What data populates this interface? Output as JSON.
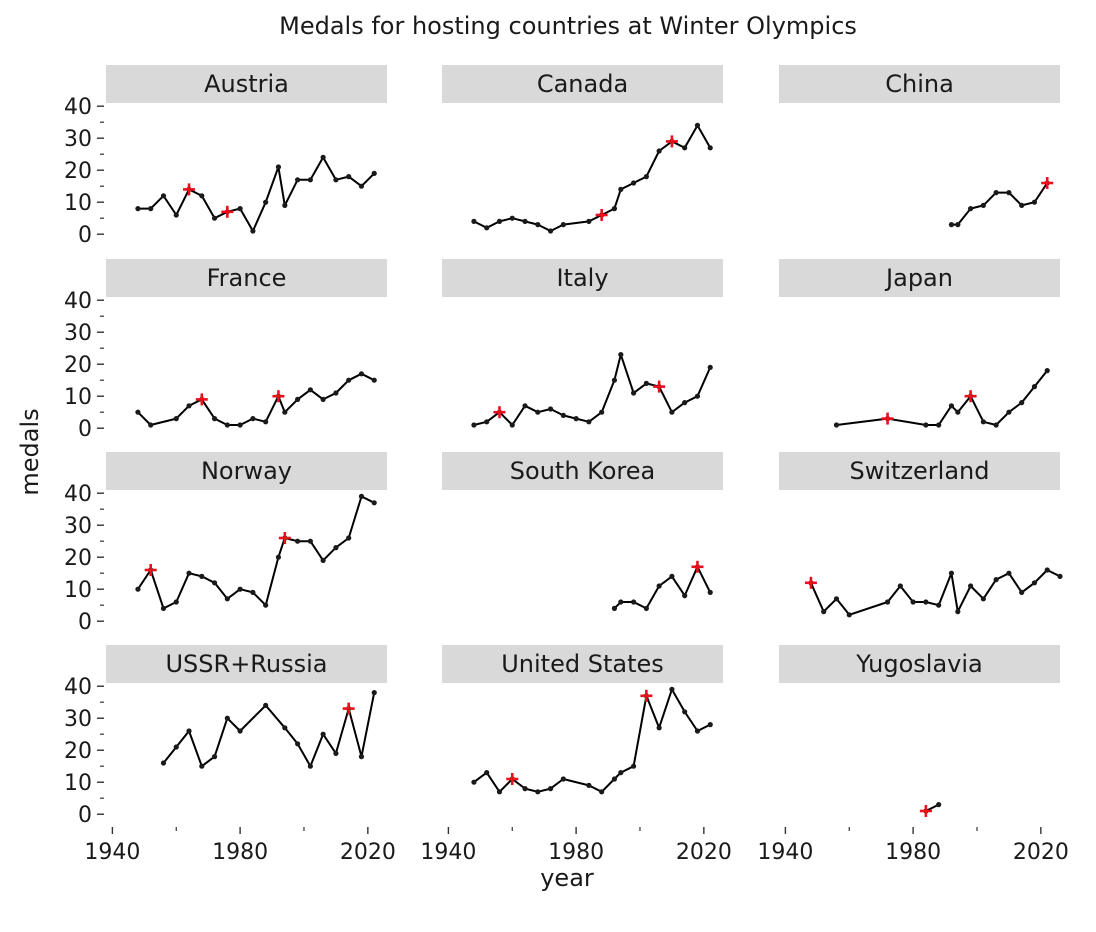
{
  "chart_data": {
    "type": "line",
    "title": "Medals for hosting countries at Winter Olympics",
    "xlabel": "year",
    "ylabel": "medals",
    "xlim": [
      1938,
      2026
    ],
    "ylim": [
      -1.5,
      41
    ],
    "x_ticks": [
      1940,
      1980,
      2020
    ],
    "x_tick_labels": [
      "1940",
      "1980",
      "2020"
    ],
    "y_ticks": [
      0,
      10,
      20,
      30,
      40
    ],
    "y_tick_labels": [
      "0",
      "10",
      "20",
      "30",
      "40"
    ],
    "grid": false,
    "line_color": "#000000",
    "host_marker_color": "#e8111b",
    "strip_color": "#d9d9d9",
    "facets": [
      {
        "name": "Austria",
        "points": [
          [
            1948,
            8
          ],
          [
            1952,
            8
          ],
          [
            1956,
            12
          ],
          [
            1960,
            6
          ],
          [
            1964,
            14
          ],
          [
            1968,
            12
          ],
          [
            1972,
            5
          ],
          [
            1976,
            7
          ],
          [
            1980,
            8
          ],
          [
            1984,
            1
          ],
          [
            1988,
            10
          ],
          [
            1992,
            21
          ],
          [
            1994,
            9
          ],
          [
            1998,
            17
          ],
          [
            2002,
            17
          ],
          [
            2006,
            24
          ],
          [
            2010,
            17
          ],
          [
            2014,
            18
          ],
          [
            2018,
            15
          ],
          [
            2022,
            19
          ]
        ],
        "host_years": [
          1964,
          1976
        ]
      },
      {
        "name": "Canada",
        "points": [
          [
            1948,
            4
          ],
          [
            1952,
            2
          ],
          [
            1956,
            4
          ],
          [
            1960,
            5
          ],
          [
            1964,
            4
          ],
          [
            1968,
            3
          ],
          [
            1972,
            1
          ],
          [
            1976,
            3
          ],
          [
            1984,
            4
          ],
          [
            1988,
            6
          ],
          [
            1992,
            8
          ],
          [
            1994,
            14
          ],
          [
            1998,
            16
          ],
          [
            2002,
            18
          ],
          [
            2006,
            26
          ],
          [
            2010,
            29
          ],
          [
            2014,
            27
          ],
          [
            2018,
            34
          ],
          [
            2022,
            27
          ]
        ],
        "host_years": [
          1988,
          2010
        ]
      },
      {
        "name": "China",
        "points": [
          [
            1992,
            3
          ],
          [
            1994,
            3
          ],
          [
            1998,
            8
          ],
          [
            2002,
            9
          ],
          [
            2006,
            13
          ],
          [
            2010,
            13
          ],
          [
            2014,
            9
          ],
          [
            2018,
            10
          ],
          [
            2022,
            16
          ]
        ],
        "host_years": [
          2022
        ]
      },
      {
        "name": "France",
        "points": [
          [
            1948,
            5
          ],
          [
            1952,
            1
          ],
          [
            1960,
            3
          ],
          [
            1964,
            7
          ],
          [
            1968,
            9
          ],
          [
            1972,
            3
          ],
          [
            1976,
            1
          ],
          [
            1980,
            1
          ],
          [
            1984,
            3
          ],
          [
            1988,
            2
          ],
          [
            1992,
            10
          ],
          [
            1994,
            5
          ],
          [
            1998,
            9
          ],
          [
            2002,
            12
          ],
          [
            2006,
            9
          ],
          [
            2010,
            11
          ],
          [
            2014,
            15
          ],
          [
            2018,
            17
          ],
          [
            2022,
            15
          ]
        ],
        "host_years": [
          1968,
          1992
        ]
      },
      {
        "name": "Italy",
        "points": [
          [
            1948,
            1
          ],
          [
            1952,
            2
          ],
          [
            1956,
            5
          ],
          [
            1960,
            1
          ],
          [
            1964,
            7
          ],
          [
            1968,
            5
          ],
          [
            1972,
            6
          ],
          [
            1976,
            4
          ],
          [
            1980,
            3
          ],
          [
            1984,
            2
          ],
          [
            1988,
            5
          ],
          [
            1992,
            15
          ],
          [
            1994,
            23
          ],
          [
            1998,
            11
          ],
          [
            2002,
            14
          ],
          [
            2006,
            13
          ],
          [
            2010,
            5
          ],
          [
            2014,
            8
          ],
          [
            2018,
            10
          ],
          [
            2022,
            19
          ]
        ],
        "host_years": [
          1956,
          2006
        ]
      },
      {
        "name": "Japan",
        "points": [
          [
            1956,
            1
          ],
          [
            1972,
            3
          ],
          [
            1984,
            1
          ],
          [
            1988,
            1
          ],
          [
            1992,
            7
          ],
          [
            1994,
            5
          ],
          [
            1998,
            10
          ],
          [
            2002,
            2
          ],
          [
            2006,
            1
          ],
          [
            2010,
            5
          ],
          [
            2014,
            8
          ],
          [
            2018,
            13
          ],
          [
            2022,
            18
          ]
        ],
        "host_years": [
          1972,
          1998
        ]
      },
      {
        "name": "Norway",
        "points": [
          [
            1948,
            10
          ],
          [
            1952,
            16
          ],
          [
            1956,
            4
          ],
          [
            1960,
            6
          ],
          [
            1964,
            15
          ],
          [
            1968,
            14
          ],
          [
            1972,
            12
          ],
          [
            1976,
            7
          ],
          [
            1980,
            10
          ],
          [
            1984,
            9
          ],
          [
            1988,
            5
          ],
          [
            1992,
            20
          ],
          [
            1994,
            26
          ],
          [
            1998,
            25
          ],
          [
            2002,
            25
          ],
          [
            2006,
            19
          ],
          [
            2010,
            23
          ],
          [
            2014,
            26
          ],
          [
            2018,
            39
          ],
          [
            2022,
            37
          ]
        ],
        "host_years": [
          1952,
          1994
        ]
      },
      {
        "name": "South Korea",
        "points": [
          [
            1992,
            4
          ],
          [
            1994,
            6
          ],
          [
            1998,
            6
          ],
          [
            2002,
            4
          ],
          [
            2006,
            11
          ],
          [
            2010,
            14
          ],
          [
            2014,
            8
          ],
          [
            2018,
            17
          ],
          [
            2022,
            9
          ]
        ],
        "host_years": [
          2018
        ]
      },
      {
        "name": "Switzerland",
        "points": [
          [
            1948,
            12
          ],
          [
            1952,
            3
          ],
          [
            1956,
            7
          ],
          [
            1960,
            2
          ],
          [
            1972,
            6
          ],
          [
            1976,
            11
          ],
          [
            1980,
            6
          ],
          [
            1984,
            6
          ],
          [
            1988,
            5
          ],
          [
            1992,
            15
          ],
          [
            1994,
            3
          ],
          [
            1998,
            11
          ],
          [
            2002,
            7
          ],
          [
            2006,
            13
          ],
          [
            2010,
            15
          ],
          [
            2014,
            9
          ],
          [
            2018,
            12
          ],
          [
            2022,
            16
          ],
          [
            2026,
            14
          ]
        ],
        "host_years": [
          1948
        ]
      },
      {
        "name": "USSR+Russia",
        "points": [
          [
            1956,
            16
          ],
          [
            1960,
            21
          ],
          [
            1964,
            26
          ],
          [
            1968,
            15
          ],
          [
            1972,
            18
          ],
          [
            1976,
            30
          ],
          [
            1980,
            26
          ],
          [
            1988,
            34
          ],
          [
            1994,
            27
          ],
          [
            1998,
            22
          ],
          [
            2002,
            15
          ],
          [
            2006,
            25
          ],
          [
            2010,
            19
          ],
          [
            2014,
            33
          ],
          [
            2018,
            18
          ],
          [
            2022,
            38
          ]
        ],
        "host_years": [
          2014
        ]
      },
      {
        "name": "United States",
        "points": [
          [
            1948,
            10
          ],
          [
            1952,
            13
          ],
          [
            1956,
            7
          ],
          [
            1960,
            11
          ],
          [
            1964,
            8
          ],
          [
            1968,
            7
          ],
          [
            1972,
            8
          ],
          [
            1976,
            11
          ],
          [
            1984,
            9
          ],
          [
            1988,
            7
          ],
          [
            1992,
            11
          ],
          [
            1994,
            13
          ],
          [
            1998,
            15
          ],
          [
            2002,
            37
          ],
          [
            2006,
            27
          ],
          [
            2010,
            39
          ],
          [
            2014,
            32
          ],
          [
            2018,
            26
          ],
          [
            2022,
            28
          ]
        ],
        "host_years": [
          1960,
          2002
        ]
      },
      {
        "name": "Yugoslavia",
        "points": [
          [
            1984,
            1
          ],
          [
            1988,
            3
          ]
        ],
        "host_years": [
          1984
        ]
      }
    ]
  }
}
